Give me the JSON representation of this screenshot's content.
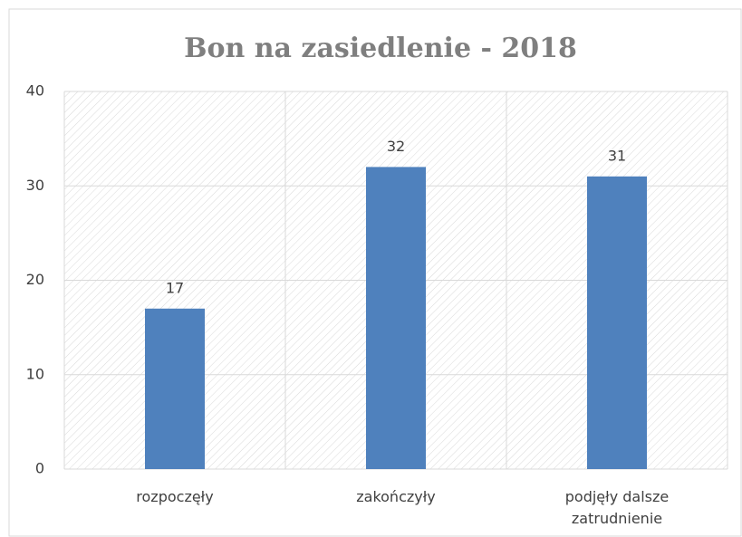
{
  "chart_data": {
    "type": "bar",
    "title": "Bon na zasiedlenie - 2018",
    "categories": [
      "rozpoczęły",
      "zakończyły",
      "podjęły dalsze zatrudnienie"
    ],
    "values": [
      17,
      32,
      31
    ],
    "color": "#4f81bd",
    "ylim": [
      0,
      40
    ],
    "yticks": [
      0,
      10,
      20,
      30,
      40
    ],
    "grid": true
  }
}
